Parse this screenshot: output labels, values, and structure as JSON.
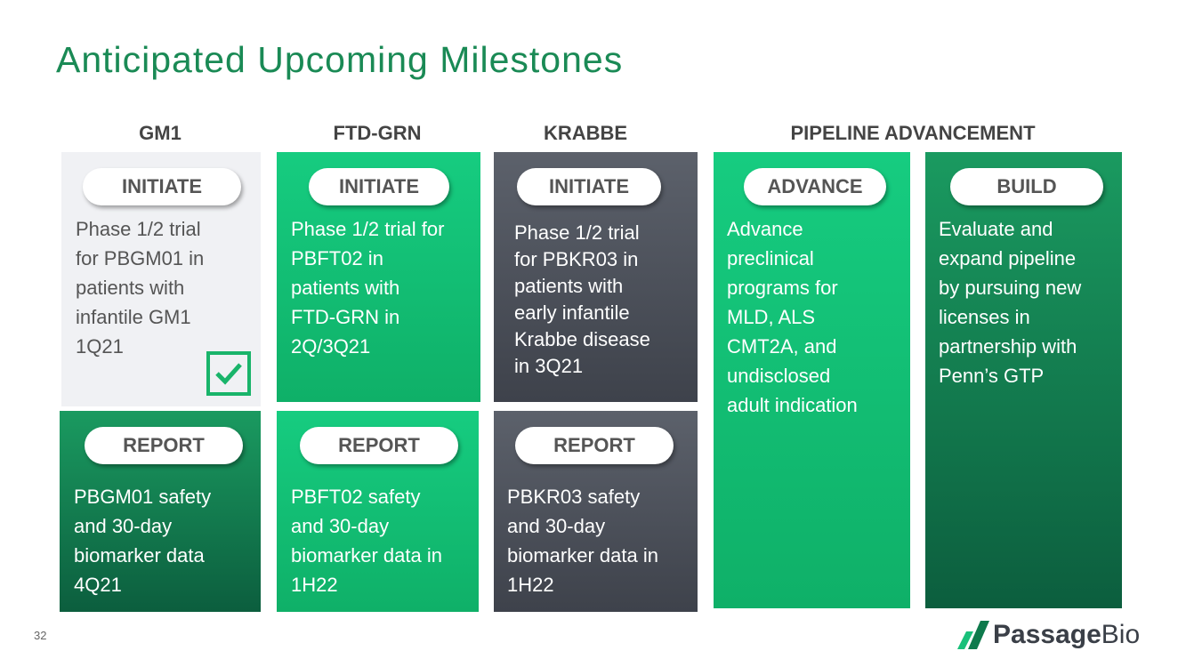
{
  "header": {
    "title": "Anticipated Upcoming Milestones"
  },
  "columns": [
    "GM1",
    "FTD-GRN",
    "KRABBE",
    "PIPELINE ADVANCEMENT"
  ],
  "cards": [
    {
      "label": "INITIATE",
      "lines": [
        "Phase 1/2 trial",
        "for PBGM01 in",
        "patients with",
        "infantile GM1",
        "1Q21"
      ]
    },
    {
      "label": "REPORT",
      "lines": [
        "PBGM01 safety",
        "and 30-day",
        "biomarker data",
        "4Q21"
      ]
    },
    {
      "label": "INITIATE",
      "lines": [
        "Phase 1/2 trial for",
        "PBFT02 in",
        "patients with",
        "FTD-GRN in",
        "2Q/3Q21"
      ]
    },
    {
      "label": "REPORT",
      "lines": [
        "PBFT02 safety",
        "and 30-day",
        "biomarker data in",
        "1H22"
      ]
    },
    {
      "label": "INITIATE",
      "lines": [
        "Phase 1/2 trial",
        "for PBKR03 in",
        "patients with",
        "early infantile",
        "Krabbe disease",
        "in 3Q21"
      ]
    },
    {
      "label": "REPORT",
      "lines": [
        "PBKR03 safety",
        "and 30-day",
        "biomarker data in",
        "1H22"
      ]
    },
    {
      "label": "ADVANCE",
      "lines": [
        "Advance",
        "preclinical",
        "programs for",
        "MLD, ALS",
        "CMT2A, and",
        "undisclosed",
        "adult indication"
      ]
    },
    {
      "label": "BUILD",
      "lines": [
        "Evaluate and",
        "expand pipeline",
        "by pursuing new",
        "licenses in",
        "partnership with",
        "Penn’s GTP"
      ]
    }
  ],
  "footer": {
    "page_number": "32",
    "logo": [
      "Passage",
      "Bio"
    ]
  }
}
